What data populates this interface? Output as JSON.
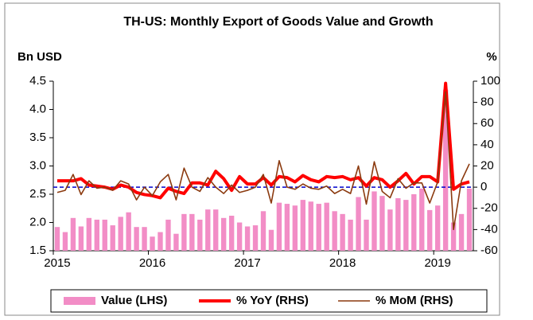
{
  "chart_data": {
    "type": "bar_line",
    "title": "TH-US: Monthly Export of Goods Value and Growth",
    "y_label": "Bn USD",
    "y2_label": "%",
    "categories": [
      "2015",
      null,
      null,
      null,
      null,
      null,
      null,
      null,
      null,
      null,
      null,
      null,
      "2016",
      null,
      null,
      null,
      null,
      null,
      null,
      null,
      null,
      null,
      null,
      null,
      "2017",
      null,
      null,
      null,
      null,
      null,
      null,
      null,
      null,
      null,
      null,
      null,
      "2018",
      null,
      null,
      null,
      null,
      null,
      null,
      null,
      null,
      null,
      null,
      null,
      "2019",
      null,
      null,
      null,
      null
    ],
    "series": [
      {
        "name": "Value (LHS)",
        "type": "bar",
        "axis": "y",
        "color": "#f28dc6",
        "values": [
          1.92,
          1.83,
          2.08,
          1.93,
          2.08,
          2.05,
          2.05,
          1.95,
          2.1,
          2.18,
          1.92,
          1.92,
          1.75,
          1.83,
          2.05,
          1.8,
          2.15,
          2.15,
          2.05,
          2.23,
          2.23,
          2.08,
          2.12,
          2.0,
          1.93,
          1.95,
          2.2,
          1.87,
          2.35,
          2.33,
          2.3,
          2.4,
          2.37,
          2.33,
          2.35,
          2.2,
          2.15,
          2.05,
          2.45,
          2.05,
          2.55,
          2.47,
          2.23,
          2.43,
          2.4,
          2.5,
          2.6,
          2.22,
          2.3,
          4.35,
          2.0,
          2.15,
          2.6
        ]
      },
      {
        "name": "% YoY (RHS)",
        "type": "line",
        "axis": "y2",
        "color": "#ff0000",
        "width": 4,
        "values": [
          6,
          6,
          6,
          8,
          2,
          1,
          0,
          -2,
          2,
          0,
          -5,
          -7,
          -8,
          -10,
          -1,
          -4,
          -6,
          4,
          4,
          2,
          15,
          8,
          -3,
          10,
          3,
          3,
          9,
          2,
          10,
          9,
          5,
          11,
          7,
          5,
          10,
          9,
          10,
          7,
          9,
          1,
          9,
          7,
          0,
          6,
          13,
          3,
          10,
          10,
          5,
          98,
          -2,
          3,
          5
        ]
      },
      {
        "name": "% MoM (RHS)",
        "type": "line",
        "axis": "y2",
        "color": "#8b3a0f",
        "width": 1.6,
        "values": [
          -5,
          -3,
          12,
          -7,
          6,
          -1,
          0,
          -3,
          6,
          3,
          -12,
          0,
          -8,
          5,
          12,
          -12,
          18,
          0,
          -4,
          9,
          0,
          -6,
          2,
          -5,
          -3,
          0,
          12,
          -15,
          25,
          0,
          -2,
          3,
          -1,
          -2,
          1,
          -6,
          -2,
          -6,
          20,
          -16,
          24,
          -4,
          -10,
          8,
          -1,
          4,
          4,
          -15,
          5,
          90,
          -40,
          6,
          22
        ]
      }
    ],
    "ylim": [
      1.5,
      4.5
    ],
    "yticks": [
      1.5,
      {
        "value": 2,
        "label": "2.0"
      },
      2.5,
      {
        "value": 3,
        "label": "3.0"
      },
      3.5,
      {
        "value": 4,
        "label": "4.0"
      },
      4.5
    ],
    "y2lim": [
      -60,
      100
    ],
    "y2ticks": [
      -60,
      -40,
      -20,
      0,
      20,
      40,
      60,
      80,
      100
    ],
    "reference_line": {
      "axis": "y2",
      "value": 0,
      "color": "#0000cc"
    },
    "legend": "bottom"
  }
}
